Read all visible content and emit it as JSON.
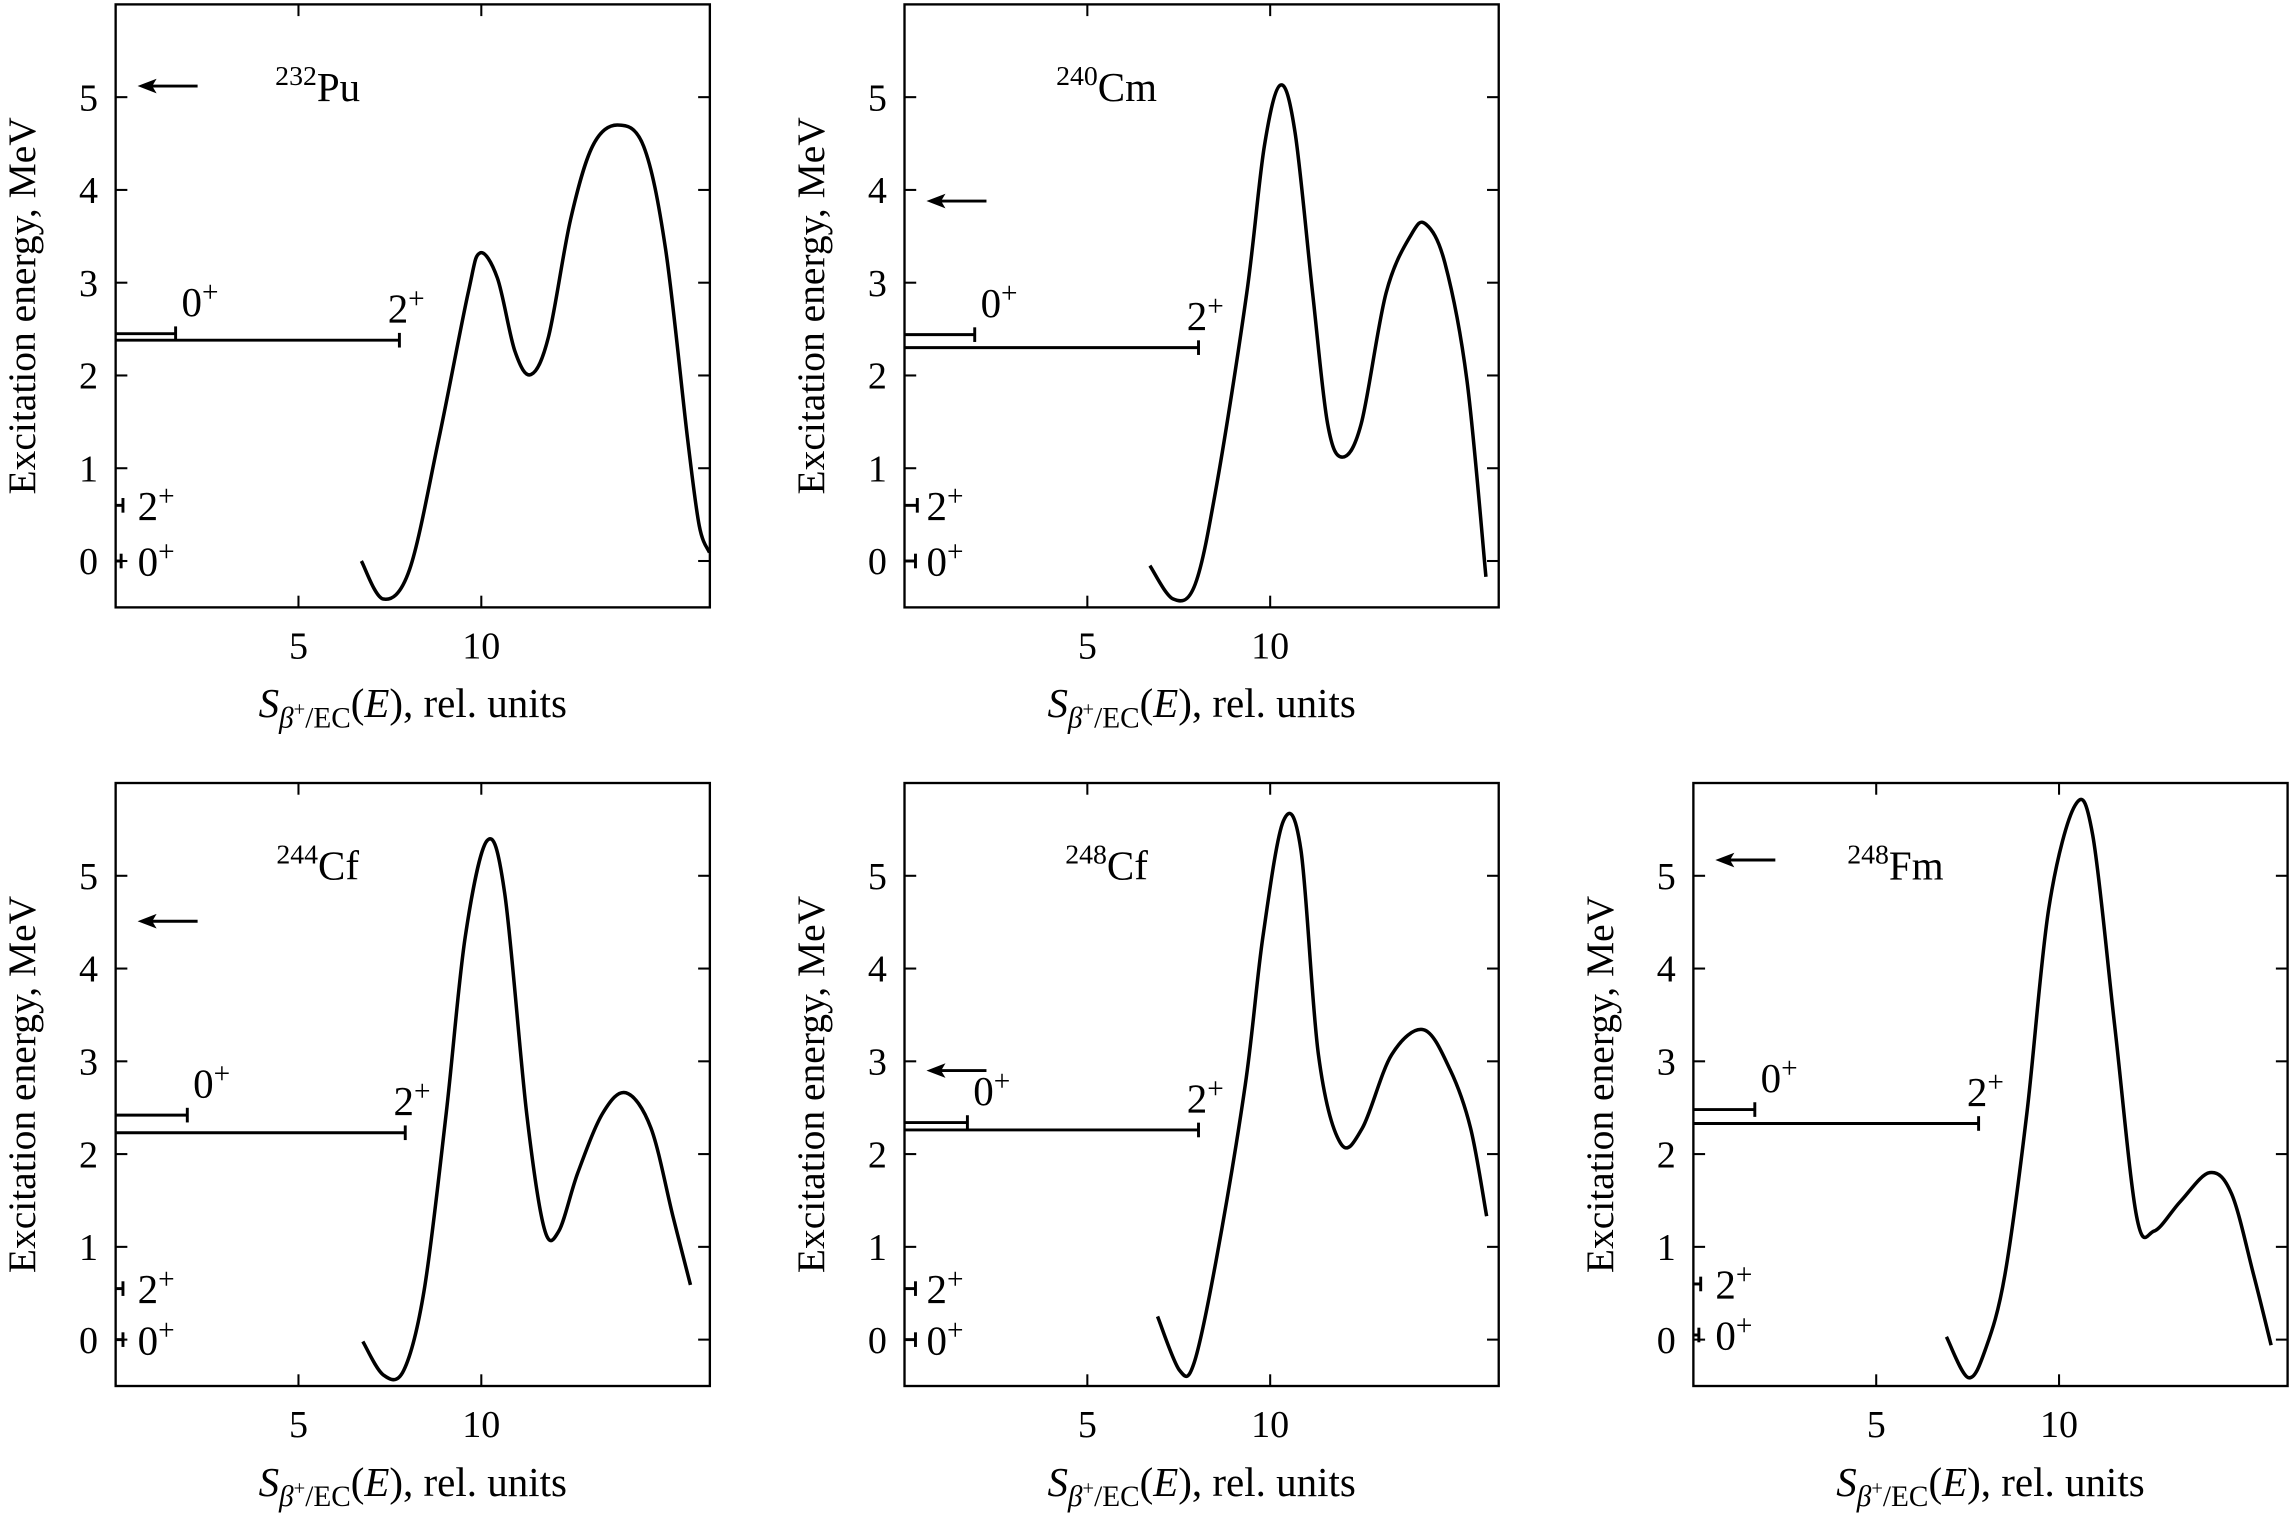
{
  "chart_data": [
    {
      "type": "line",
      "title": {
        "mass": "232",
        "element": "Pu"
      },
      "xlabel": {
        "symbol": "S",
        "sub": "β",
        "sub_sup": "+",
        "sub_tail": "/EC",
        "open": "(",
        "var": "E",
        "tail": "), rel. units"
      },
      "ylabel": "Excitation energy, MeV",
      "xlim": [
        0,
        16.25
      ],
      "xticks": [
        5,
        10
      ],
      "ylim": [
        -0.5,
        6
      ],
      "yticks": [
        0,
        1,
        2,
        3,
        4,
        5
      ],
      "series": [
        {
          "color": "#000000",
          "x": [
            6.72,
            7.32,
            8.04,
            8.84,
            9.64,
            9.96,
            10.44,
            10.92,
            11.36,
            11.84,
            12.44,
            13.04,
            13.72,
            14.44,
            15.04,
            15.64,
            15.96,
            16.24
          ],
          "values": [
            0,
            -0.41,
            -0.09,
            1.32,
            2.89,
            3.32,
            3.05,
            2.26,
            2.01,
            2.42,
            3.68,
            4.47,
            4.7,
            4.47,
            3.36,
            1.32,
            0.38,
            0.09
          ]
        }
      ],
      "levels": [
        {
          "spin": "0",
          "parity": "+",
          "energy": 2.45,
          "strength": 1.64
        },
        {
          "spin": "2",
          "parity": "+",
          "energy": 2.38,
          "strength": 7.76
        },
        {
          "spin": "2",
          "parity": "+",
          "energy": 0.6,
          "strength": 0.2
        },
        {
          "spin": "0",
          "parity": "+",
          "energy": 0,
          "strength": 0.15
        }
      ],
      "arrow": 5.12
    },
    {
      "type": "line",
      "title": {
        "mass": "240",
        "element": "Cm"
      },
      "xlabel": {
        "symbol": "S",
        "sub": "β",
        "sub_sup": "+",
        "sub_tail": "/EC",
        "open": "(",
        "var": "E",
        "tail": "), rel. units"
      },
      "ylabel": "Excitation energy, MeV",
      "xlim": [
        0,
        16.25
      ],
      "xticks": [
        5,
        10
      ],
      "ylim": [
        -0.5,
        6
      ],
      "yticks": [
        0,
        1,
        2,
        3,
        4,
        5
      ],
      "series": [
        {
          "color": "#000000",
          "x": [
            6.71,
            7.35,
            7.95,
            8.55,
            9.36,
            9.84,
            10.28,
            10.68,
            11.16,
            11.57,
            11.97,
            12.49,
            13.17,
            13.86,
            14.26,
            14.78,
            15.38,
            15.9
          ],
          "values": [
            -0.05,
            -0.41,
            -0.25,
            0.85,
            2.89,
            4.47,
            5.13,
            4.62,
            2.89,
            1.48,
            1.12,
            1.48,
            2.89,
            3.52,
            3.63,
            3.21,
            1.95,
            -0.17
          ]
        }
      ],
      "levels": [
        {
          "spin": "0",
          "parity": "+",
          "energy": 2.44,
          "strength": 1.92
        },
        {
          "spin": "2",
          "parity": "+",
          "energy": 2.3,
          "strength": 8.04
        },
        {
          "spin": "2",
          "parity": "+",
          "energy": 0.6,
          "strength": 0.35
        },
        {
          "spin": "0",
          "parity": "+",
          "energy": 0,
          "strength": 0.3
        }
      ],
      "arrow": 3.88
    },
    {
      "type": "line",
      "title": {
        "mass": "244",
        "element": "Cf"
      },
      "xlabel": {
        "symbol": "S",
        "sub": "β",
        "sub_sup": "+",
        "sub_tail": "/EC",
        "open": "(",
        "var": "E",
        "tail": "), rel. units"
      },
      "ylabel": "Excitation energy, MeV",
      "xlim": [
        0,
        16.25
      ],
      "xticks": [
        5,
        10
      ],
      "ylim": [
        -0.5,
        6
      ],
      "yticks": [
        0,
        1,
        2,
        3,
        4,
        5
      ],
      "series": [
        {
          "color": "#000000",
          "x": [
            6.76,
            7.32,
            7.88,
            8.44,
            9.04,
            9.56,
            10.16,
            10.64,
            11.24,
            11.72,
            12.12,
            12.64,
            13.32,
            13.96,
            14.64,
            15.24,
            15.72
          ],
          "values": [
            -0.02,
            -0.38,
            -0.33,
            0.54,
            2.44,
            4.34,
            5.38,
            4.81,
            2.44,
            1.2,
            1.17,
            1.8,
            2.44,
            2.66,
            2.28,
            1.33,
            0.59
          ]
        }
      ],
      "levels": [
        {
          "spin": "0",
          "parity": "+",
          "energy": 2.42,
          "strength": 1.96
        },
        {
          "spin": "2",
          "parity": "+",
          "energy": 2.23,
          "strength": 7.92
        },
        {
          "spin": "2",
          "parity": "+",
          "energy": 0.55,
          "strength": 0.2
        },
        {
          "spin": "0",
          "parity": "+",
          "energy": 0,
          "strength": 0.2
        }
      ],
      "arrow": 4.51
    },
    {
      "type": "line",
      "title": {
        "mass": "248",
        "element": "Cf"
      },
      "xlabel": {
        "symbol": "S",
        "sub": "β",
        "sub_sup": "+",
        "sub_tail": "/EC",
        "open": "(",
        "var": "E",
        "tail": "), rel. units"
      },
      "ylabel": "Excitation energy, MeV",
      "xlim": [
        0,
        16.25
      ],
      "xticks": [
        5,
        10
      ],
      "ylim": [
        -0.5,
        6
      ],
      "yticks": [
        0,
        1,
        2,
        3,
        4,
        5
      ],
      "series": [
        {
          "color": "#000000",
          "x": [
            6.92,
            7.52,
            7.92,
            8.52,
            9.32,
            9.8,
            10.36,
            10.84,
            11.32,
            11.92,
            12.52,
            13.32,
            14.2,
            14.92,
            15.48,
            15.92
          ],
          "values": [
            0.25,
            -0.33,
            -0.25,
            0.85,
            2.75,
            4.34,
            5.59,
            5.28,
            3.07,
            2.12,
            2.28,
            3.07,
            3.34,
            2.91,
            2.28,
            1.33
          ]
        }
      ],
      "levels": [
        {
          "spin": "0",
          "parity": "+",
          "energy": 2.34,
          "strength": 1.72
        },
        {
          "spin": "2",
          "parity": "+",
          "energy": 2.26,
          "strength": 8.04
        },
        {
          "spin": "2",
          "parity": "+",
          "energy": 0.55,
          "strength": 0.3
        },
        {
          "spin": "0",
          "parity": "+",
          "energy": 0,
          "strength": 0.3
        }
      ],
      "arrow": 2.9
    },
    {
      "type": "line",
      "title": {
        "mass": "248",
        "element": "Fm"
      },
      "xlabel": {
        "symbol": "S",
        "sub": "β",
        "sub_sup": "+",
        "sub_tail": "/EC",
        "open": "(",
        "var": "E",
        "tail": "), rel. units"
      },
      "ylabel": "Excitation energy, MeV",
      "xlim": [
        0,
        16.25
      ],
      "xticks": [
        5,
        10
      ],
      "ylim": [
        -0.5,
        6
      ],
      "yticks": [
        0,
        1,
        2,
        3,
        4,
        5
      ],
      "series": [
        {
          "color": "#000000",
          "x": [
            6.92,
            7.52,
            8.0,
            8.52,
            9.12,
            9.72,
            10.44,
            10.92,
            11.52,
            12.12,
            12.6,
            13.32,
            14.12,
            14.72,
            15.32,
            15.8
          ],
          "values": [
            0.03,
            -0.41,
            -0.09,
            0.7,
            2.44,
            4.65,
            5.76,
            5.44,
            3.39,
            1.33,
            1.17,
            1.49,
            1.8,
            1.57,
            0.7,
            -0.06
          ]
        }
      ],
      "levels": [
        {
          "spin": "0",
          "parity": "+",
          "energy": 2.48,
          "strength": 1.68
        },
        {
          "spin": "2",
          "parity": "+",
          "energy": 2.33,
          "strength": 7.8
        },
        {
          "spin": "2",
          "parity": "+",
          "energy": 0.6,
          "strength": 0.2
        },
        {
          "spin": "0",
          "parity": "+",
          "energy": 0.05,
          "strength": 0.15
        }
      ],
      "arrow": 5.17
    }
  ]
}
